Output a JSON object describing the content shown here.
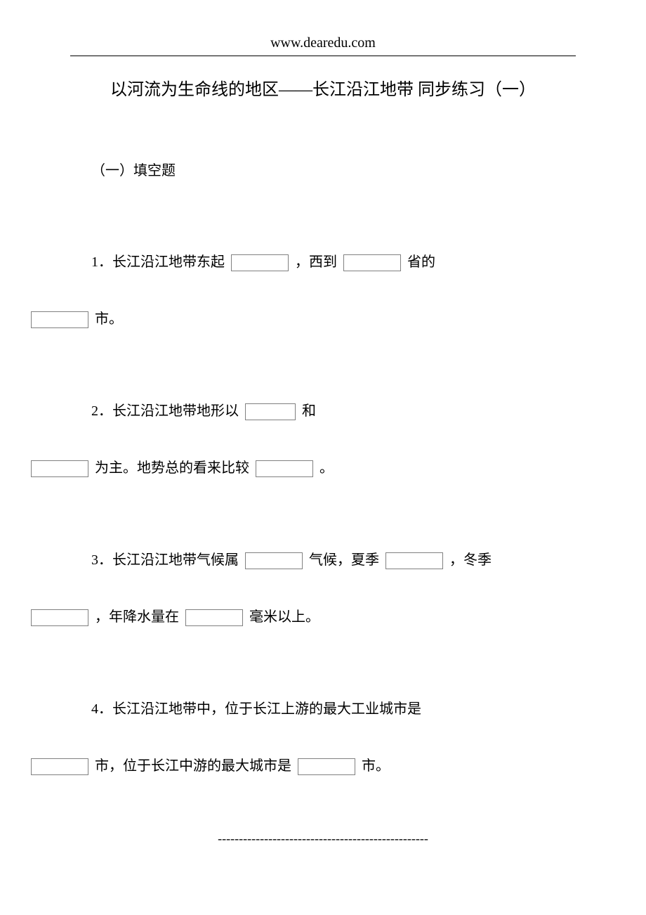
{
  "header": {
    "site": "www.dearedu.com"
  },
  "title": "以河流为生命线的地区——长江沿江地带  同步练习（一）",
  "section": {
    "heading": "（一）填空题"
  },
  "q1": {
    "p1": "1．长江沿江地带东起",
    "p2": "，西到",
    "p3": "省的",
    "p4": "市。"
  },
  "q2": {
    "p1": "2．长江沿江地带地形以",
    "p2": "和",
    "p3": "为主。地势总的看来比较",
    "p4": "。"
  },
  "q3": {
    "p1": "3．长江沿江地带气候属",
    "p2": "气候，夏季",
    "p3": "，冬季",
    "p4": "，年降水量在",
    "p5": "毫米以上。"
  },
  "q4": {
    "p1": "4．长江沿江地带中，位于长江上游的最大工业城市是",
    "p2": "市，位于长江中游的最大城市是",
    "p3": "市。"
  },
  "footer": {
    "dashline": "--------------------------------------------------"
  }
}
